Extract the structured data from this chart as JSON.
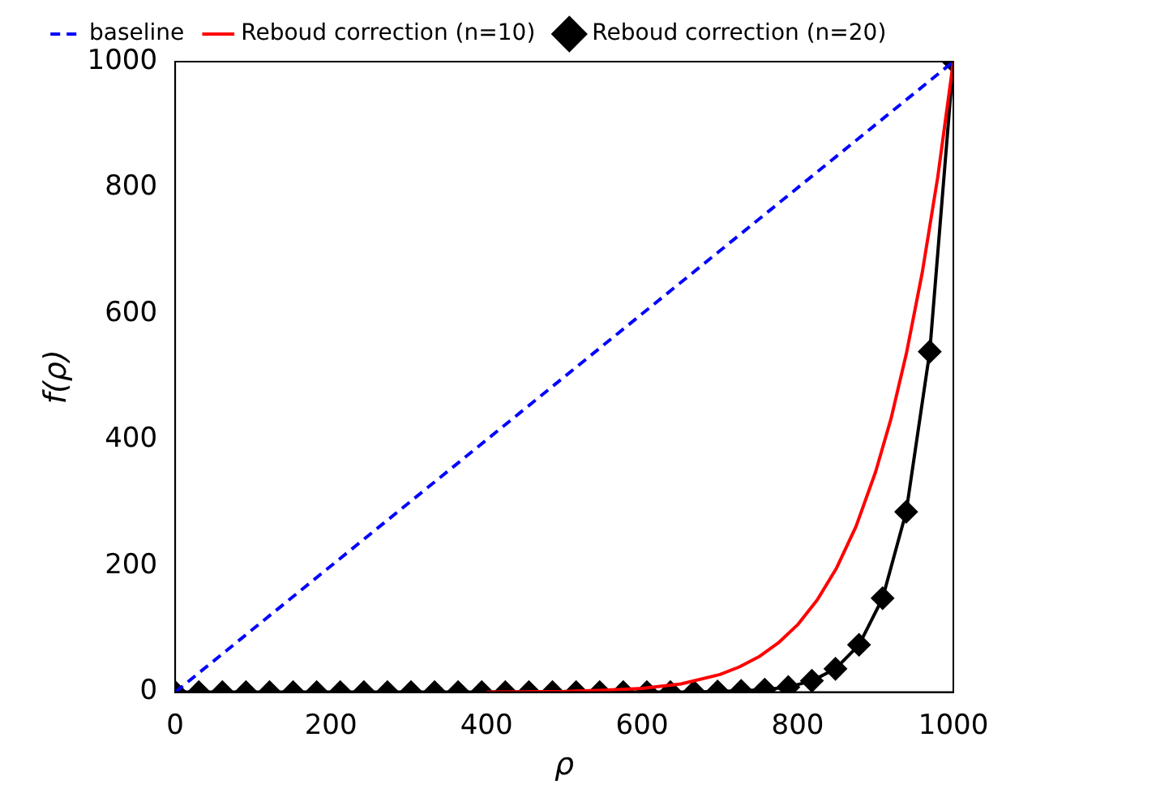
{
  "chart_data": {
    "type": "line",
    "xlabel": "ρ",
    "ylabel": "f(ρ)",
    "xlim": [
      0,
      1000
    ],
    "ylim": [
      0,
      1000
    ],
    "xticks": [
      0,
      200,
      400,
      600,
      800,
      1000
    ],
    "yticks": [
      0,
      200,
      400,
      600,
      800,
      1000
    ],
    "grid": false,
    "legend": "top",
    "series": [
      {
        "name": "baseline",
        "color": "#0000ff",
        "line_style": "dashed",
        "marker": "none",
        "x": [
          0,
          1000
        ],
        "values": [
          0,
          1000
        ]
      },
      {
        "name": "Reboud correction (n=10)",
        "color": "#ff0000",
        "line_style": "solid",
        "marker": "none",
        "x": [
          400,
          500,
          550,
          600,
          650,
          700,
          725,
          750,
          775,
          800,
          825,
          850,
          875,
          900,
          920,
          940,
          960,
          980,
          1000
        ],
        "values": [
          0,
          1,
          3,
          6,
          13,
          28,
          40,
          56,
          78,
          107,
          146,
          197,
          263,
          349,
          434,
          539,
          665,
          817,
          1000
        ]
      },
      {
        "name": "Reboud correction (n=20)",
        "color": "#000000",
        "line_style": "solid",
        "marker": "diamond",
        "x": [
          0,
          30.3,
          60.6,
          90.9,
          121.2,
          151.5,
          181.8,
          212.1,
          242.4,
          272.7,
          303,
          333.3,
          363.6,
          393.9,
          424.2,
          454.5,
          484.8,
          515.2,
          545.5,
          575.8,
          606.1,
          636.4,
          666.7,
          697,
          727.3,
          757.6,
          787.9,
          818.2,
          848.5,
          878.8,
          909.1,
          939.4,
          969.7,
          1000
        ],
        "values": [
          0,
          0,
          0,
          0,
          0,
          0,
          0,
          0,
          0,
          0,
          0,
          0,
          0,
          0,
          0,
          0,
          0,
          0,
          0,
          0,
          0,
          0,
          0,
          1,
          2,
          4,
          8,
          18,
          37,
          75,
          149,
          286,
          540,
          1000
        ]
      }
    ]
  }
}
